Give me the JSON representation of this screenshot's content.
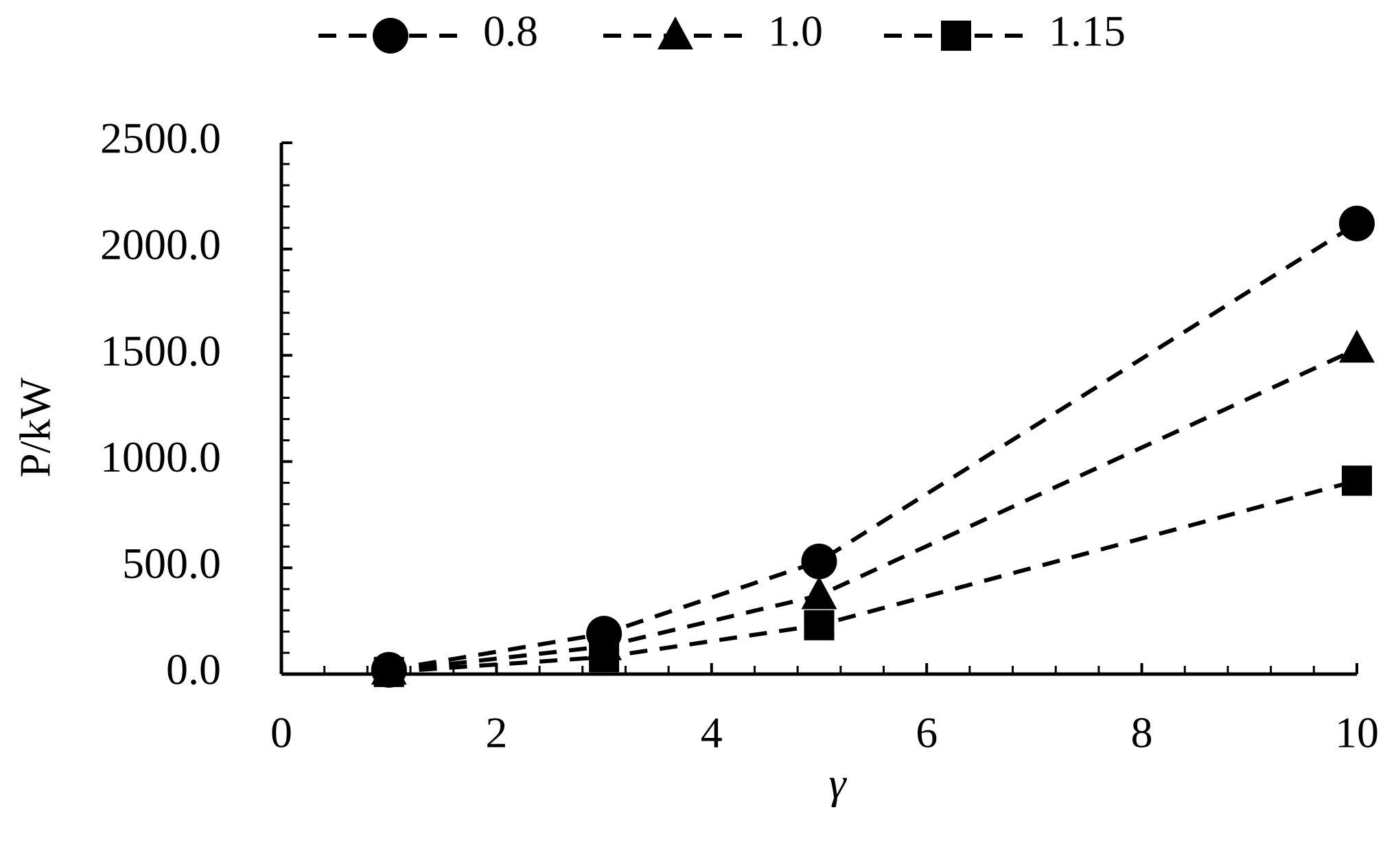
{
  "chart_data": {
    "type": "line",
    "x_label": "γ",
    "y_label": "P/kW",
    "x": [
      1,
      3,
      5,
      10
    ],
    "series": [
      {
        "name": "0.8",
        "color": "#000000",
        "marker": "circle",
        "values": [
          20,
          190,
          530,
          2120
        ]
      },
      {
        "name": "1.0",
        "color": "#000000",
        "marker": "triangle",
        "values": [
          15,
          130,
          370,
          1530
        ]
      },
      {
        "name": "1.15",
        "color": "#000000",
        "marker": "square",
        "values": [
          10,
          80,
          230,
          910
        ]
      }
    ],
    "xlim": [
      0,
      10
    ],
    "xticks": [
      0,
      2,
      4,
      6,
      8,
      10
    ],
    "ylim": [
      0,
      2500
    ],
    "yticks": [
      {
        "value": 0,
        "label": "0.0"
      },
      {
        "value": 500,
        "label": "500.0"
      },
      {
        "value": 1000,
        "label": "1000.0"
      },
      {
        "value": 1500,
        "label": "1500.0"
      },
      {
        "value": 2000,
        "label": "2000.0"
      },
      {
        "value": 2500,
        "label": "2500.0"
      }
    ],
    "legend": "top",
    "line_style": "dashed"
  }
}
